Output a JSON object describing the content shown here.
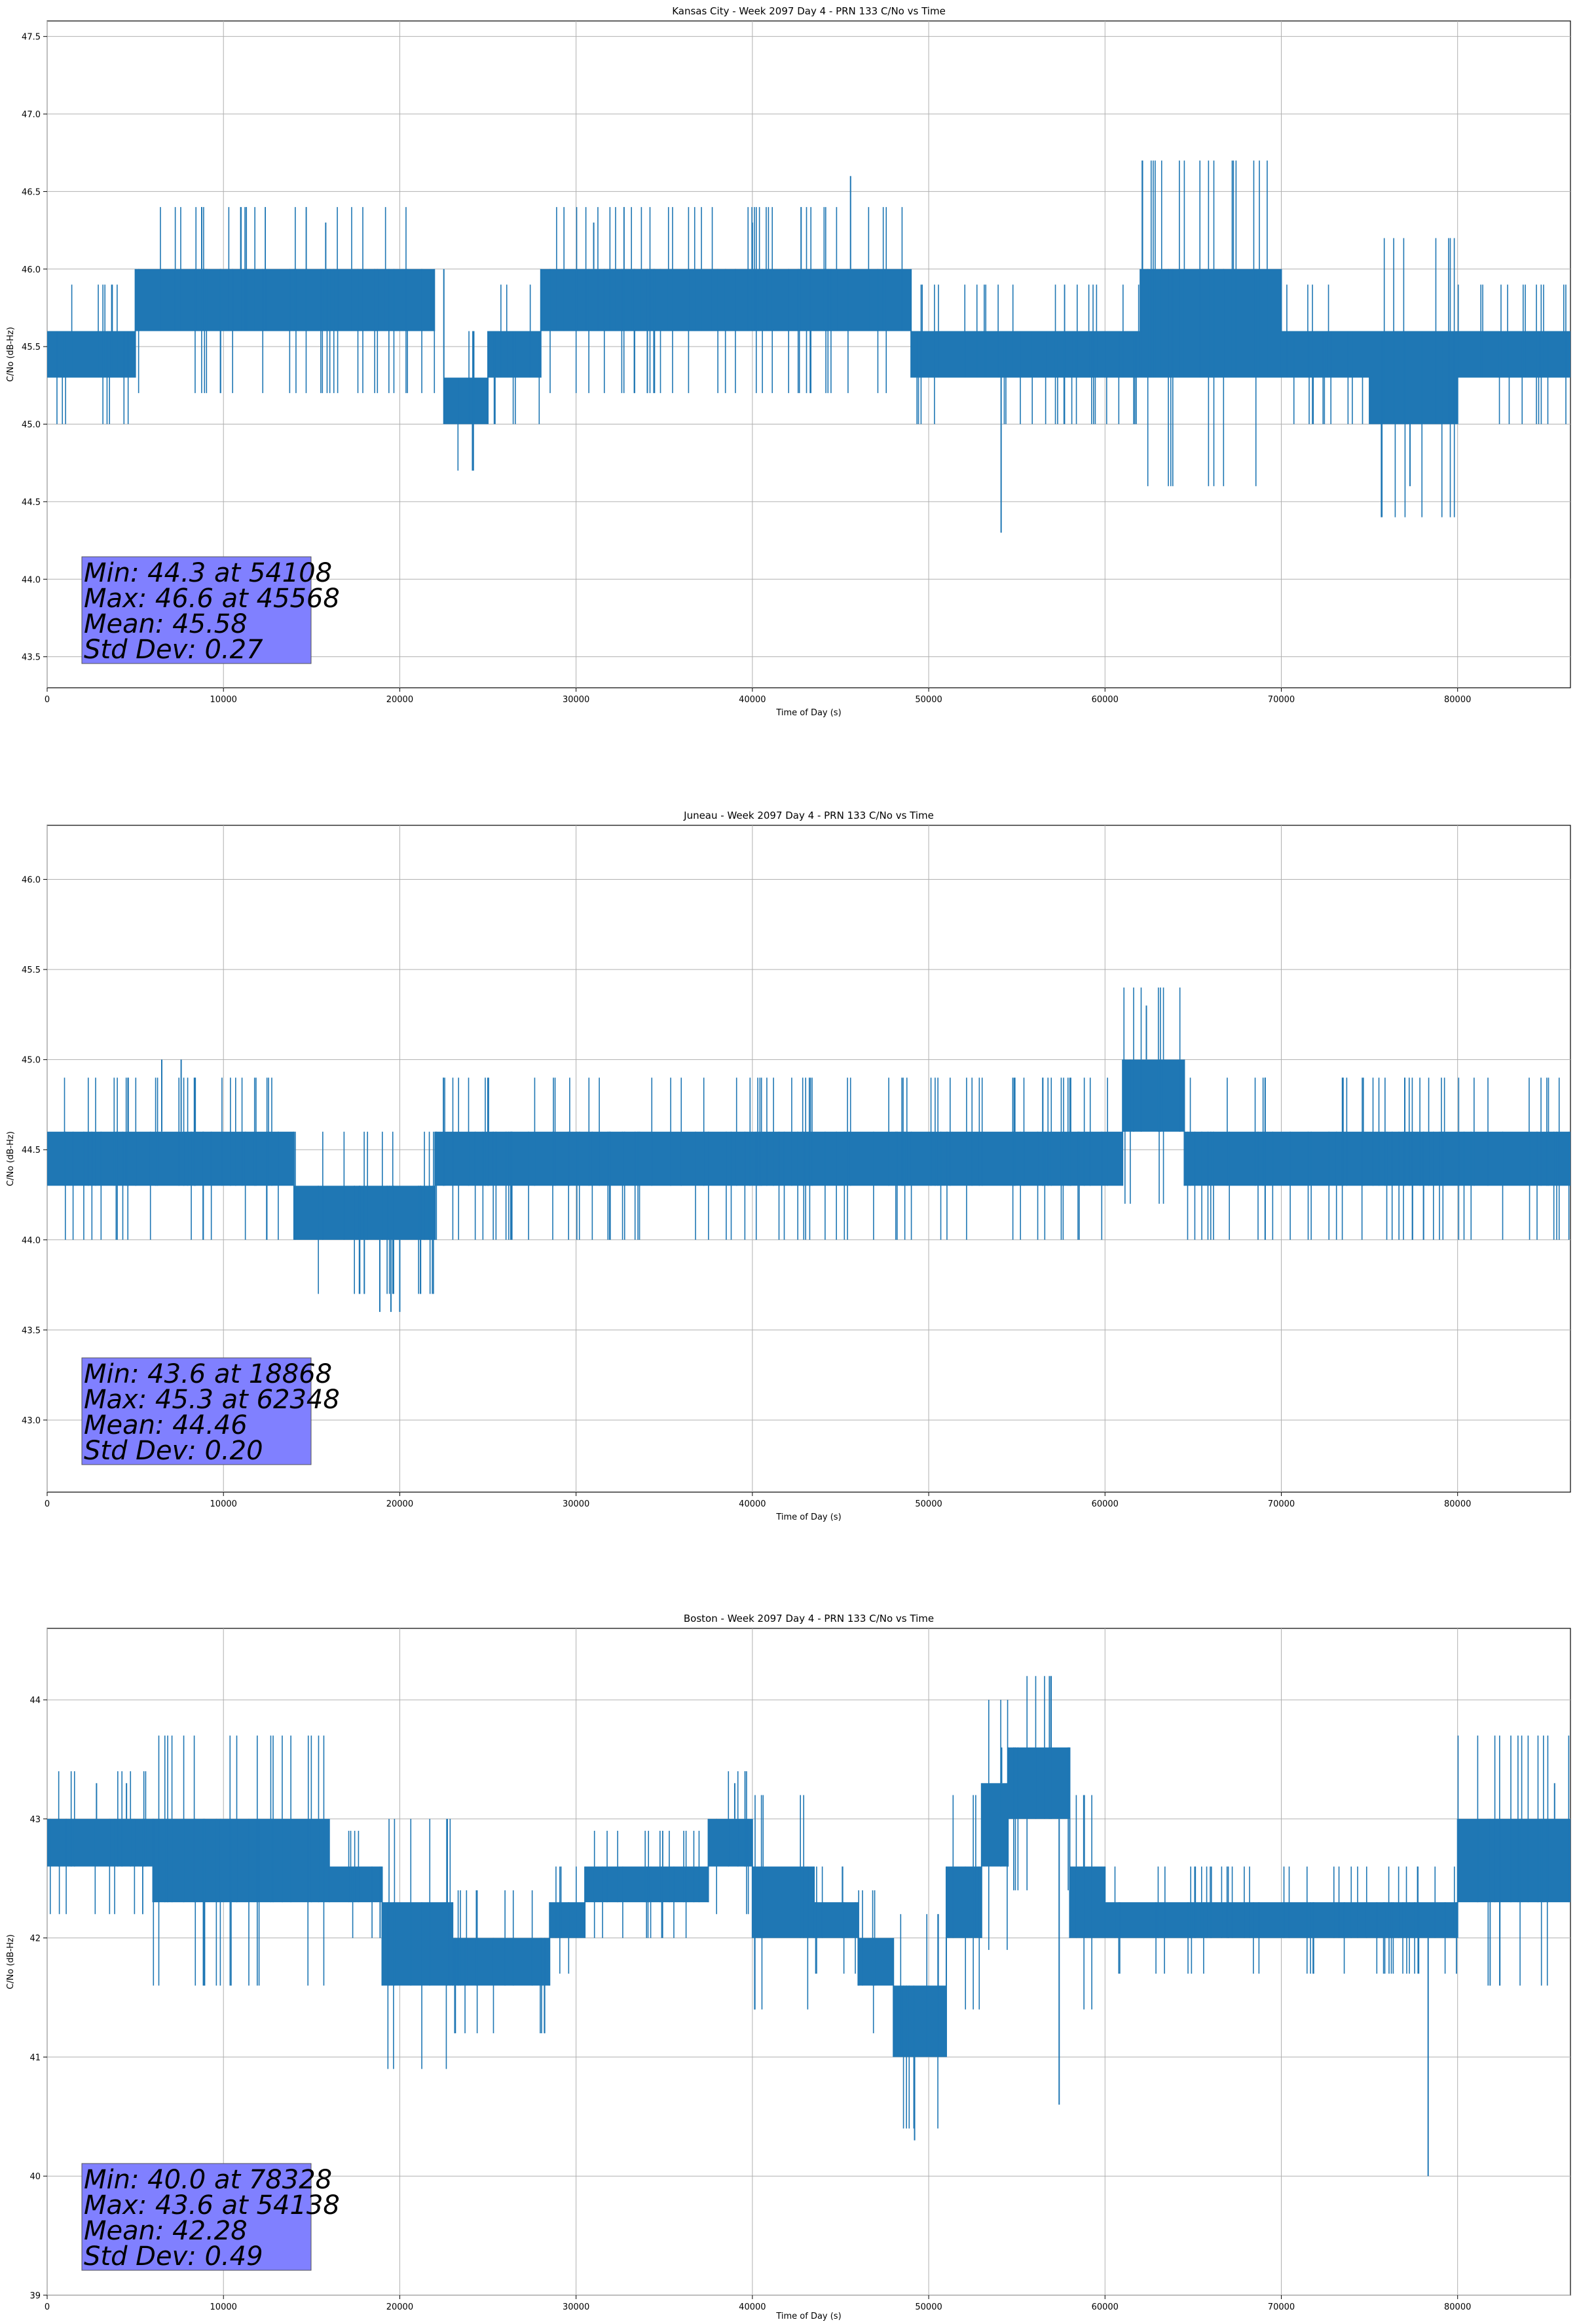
{
  "chart_data": [
    {
      "type": "line",
      "title": "Kansas City - Week 2097 Day 4 - PRN 133 C/No vs Time",
      "xlabel": "Time of Day (s)",
      "ylabel": "C/No (dB-Hz)",
      "xlim": [
        0,
        86400
      ],
      "ylim": [
        43.3,
        47.6
      ],
      "xticks": [
        0,
        10000,
        20000,
        30000,
        40000,
        50000,
        60000,
        70000,
        80000
      ],
      "yticks": [
        43.5,
        44.0,
        44.5,
        45.0,
        45.5,
        46.0,
        46.5,
        47.0,
        47.5
      ],
      "ytick_labels": [
        "43.5",
        "44.0",
        "44.5",
        "45.0",
        "45.5",
        "46.0",
        "46.5",
        "47.0",
        "47.5"
      ],
      "grid": true,
      "series_color": "#1f77b4",
      "band_segments": [
        [
          0,
          5000,
          45.3,
          45.6
        ],
        [
          5000,
          14000,
          45.6,
          46.0
        ],
        [
          14000,
          22000,
          45.6,
          46.0
        ],
        [
          22500,
          25000,
          45.0,
          45.3
        ],
        [
          25000,
          28000,
          45.3,
          45.6
        ],
        [
          28000,
          49000,
          45.6,
          46.0
        ],
        [
          49000,
          62000,
          45.3,
          45.6
        ],
        [
          62000,
          70000,
          45.3,
          46.0
        ],
        [
          70000,
          75000,
          45.3,
          45.6
        ],
        [
          75000,
          80000,
          45.0,
          45.6
        ],
        [
          80000,
          86400,
          45.3,
          45.6
        ]
      ],
      "spikes": [
        [
          45568,
          46.6
        ],
        [
          54108,
          44.3
        ],
        [
          77300,
          44.6
        ],
        [
          15800,
          46.3
        ],
        [
          31000,
          46.3
        ],
        [
          40000,
          46.3
        ]
      ],
      "stats": {
        "min": "Min: 44.3 at 54108",
        "max": "Max: 46.6 at 45568",
        "mean": "Mean: 45.58",
        "std": "Std Dev: 0.27"
      }
    },
    {
      "type": "line",
      "title": "Juneau - Week 2097 Day 4 - PRN 133 C/No vs Time",
      "xlabel": "Time of Day (s)",
      "ylabel": "C/No (dB-Hz)",
      "xlim": [
        0,
        86400
      ],
      "ylim": [
        42.6,
        46.3
      ],
      "xticks": [
        0,
        10000,
        20000,
        30000,
        40000,
        50000,
        60000,
        70000,
        80000
      ],
      "yticks": [
        43.0,
        43.5,
        44.0,
        44.5,
        45.0,
        45.5,
        46.0
      ],
      "ytick_labels": [
        "43.0",
        "43.5",
        "44.0",
        "44.5",
        "45.0",
        "45.5",
        "46.0"
      ],
      "grid": true,
      "series_color": "#1f77b4",
      "band_segments": [
        [
          0,
          14000,
          44.3,
          44.6
        ],
        [
          14000,
          22000,
          44.0,
          44.3
        ],
        [
          22000,
          61000,
          44.3,
          44.6
        ],
        [
          61000,
          64500,
          44.6,
          45.0
        ],
        [
          64500,
          86400,
          44.3,
          44.6
        ]
      ],
      "spikes": [
        [
          62348,
          45.3
        ],
        [
          18868,
          43.6
        ],
        [
          19500,
          43.6
        ],
        [
          20000,
          43.6
        ],
        [
          6500,
          45.0
        ],
        [
          7600,
          45.0
        ]
      ],
      "stats": {
        "min": "Min: 43.6 at 18868",
        "max": "Max: 45.3 at 62348",
        "mean": "Mean: 44.46",
        "std": "Std Dev: 0.20"
      }
    },
    {
      "type": "line",
      "title": "Boston - Week 2097 Day 4 - PRN 133 C/No vs Time",
      "xlabel": "Time of Day (s)",
      "ylabel": "C/No (dB-Hz)",
      "xlim": [
        0,
        86400
      ],
      "ylim": [
        39,
        44.6
      ],
      "xticks": [
        0,
        10000,
        20000,
        30000,
        40000,
        50000,
        60000,
        70000,
        80000
      ],
      "yticks": [
        39,
        40,
        41,
        42,
        43,
        44
      ],
      "ytick_labels": [
        "39",
        "40",
        "41",
        "42",
        "43",
        "44"
      ],
      "grid": true,
      "series_color": "#1f77b4",
      "band_segments": [
        [
          0,
          6000,
          42.6,
          43.0
        ],
        [
          6000,
          16000,
          42.3,
          43.0
        ],
        [
          16000,
          19000,
          42.3,
          42.6
        ],
        [
          19000,
          23000,
          41.6,
          42.3
        ],
        [
          23000,
          28500,
          41.6,
          42.0
        ],
        [
          28500,
          30500,
          42.0,
          42.3
        ],
        [
          30500,
          37500,
          42.3,
          42.6
        ],
        [
          37500,
          40000,
          42.6,
          43.0
        ],
        [
          40000,
          43500,
          42.0,
          42.6
        ],
        [
          43500,
          46000,
          42.0,
          42.3
        ],
        [
          46000,
          48000,
          41.6,
          42.0
        ],
        [
          48000,
          51000,
          41.0,
          41.6
        ],
        [
          51000,
          53000,
          42.0,
          42.6
        ],
        [
          53000,
          54500,
          42.6,
          43.3
        ],
        [
          54500,
          58000,
          43.0,
          43.6
        ],
        [
          58000,
          60000,
          42.0,
          42.6
        ],
        [
          60000,
          67000,
          42.0,
          42.3
        ],
        [
          67000,
          80000,
          42.0,
          42.3
        ],
        [
          80000,
          86400,
          42.3,
          43.0
        ]
      ],
      "spikes": [
        [
          78328,
          40.0
        ],
        [
          54138,
          43.6
        ],
        [
          49200,
          40.3
        ],
        [
          57400,
          40.6
        ],
        [
          2800,
          43.3
        ],
        [
          4500,
          43.3
        ],
        [
          39000,
          43.3
        ],
        [
          85500,
          43.3
        ]
      ],
      "stats": {
        "min": "Min: 40.0 at 78328",
        "max": "Max: 43.6 at 54138",
        "mean": "Mean: 42.28",
        "std": "Std Dev: 0.49"
      }
    }
  ]
}
